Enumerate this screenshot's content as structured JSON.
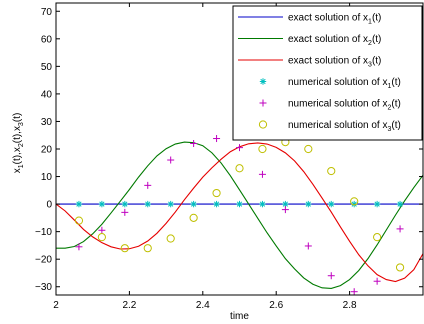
{
  "chart_data": {
    "type": "line",
    "xlabel": "time",
    "ylabel": "x_1(t),x_2(t),x_3(t)",
    "xlim": [
      2,
      3
    ],
    "ylim": [
      -33,
      73
    ],
    "xticks": [
      2,
      2.2,
      2.4,
      2.6,
      2.8
    ],
    "xtick_labels": [
      "2",
      "2.2",
      "2.4",
      "2.6",
      "2.8"
    ],
    "yticks": [
      -30,
      -20,
      -10,
      0,
      10,
      20,
      30,
      40,
      50,
      60,
      70
    ],
    "ytick_labels": [
      "−30",
      "−20",
      "−10",
      "0",
      "10",
      "20",
      "30",
      "40",
      "50",
      "60",
      "70"
    ],
    "grid": false,
    "legend_position": "top-right",
    "series": [
      {
        "kind": "line",
        "color": "#0000c8",
        "legend": {
          "before": "exact solution of x",
          "sub": "1",
          "after": "(t)"
        },
        "x": [
          2.0,
          2.05,
          2.1,
          2.15,
          2.2,
          2.25,
          2.3,
          2.35,
          2.4,
          2.45,
          2.5,
          2.55,
          2.6,
          2.65,
          2.7,
          2.75,
          2.8,
          2.85,
          2.9,
          2.95,
          3.0
        ],
        "y": [
          0,
          0,
          0,
          0,
          0,
          0,
          0,
          0,
          0,
          0,
          0,
          0,
          0,
          0,
          0,
          0,
          0,
          0,
          0,
          0,
          0
        ]
      },
      {
        "kind": "line",
        "color": "#007a00",
        "legend": {
          "before": "exact solution of x",
          "sub": "2",
          "after": "(t)"
        },
        "x": [
          2.0,
          2.025,
          2.05,
          2.075,
          2.1,
          2.125,
          2.15,
          2.175,
          2.2,
          2.225,
          2.25,
          2.275,
          2.3,
          2.325,
          2.35,
          2.375,
          2.4,
          2.425,
          2.45,
          2.475,
          2.5,
          2.525,
          2.55,
          2.575,
          2.6,
          2.625,
          2.65,
          2.675,
          2.7,
          2.725,
          2.75,
          2.775,
          2.8,
          2.825,
          2.85,
          2.875,
          2.9,
          2.925,
          2.95,
          2.975,
          3.0
        ],
        "y": [
          -16.0,
          -16.0,
          -15.4,
          -13.6,
          -10.8,
          -7.3,
          -3.2,
          1.0,
          5.3,
          9.8,
          13.9,
          17.5,
          20.1,
          21.8,
          22.5,
          22.3,
          21.2,
          18.6,
          14.9,
          10.3,
          5.2,
          0.0,
          -5.2,
          -10.4,
          -15.2,
          -19.8,
          -23.5,
          -26.8,
          -29.1,
          -30.4,
          -30.6,
          -29.6,
          -27.4,
          -24.1,
          -19.8,
          -14.8,
          -9.4,
          -4.0,
          1.2,
          6.0,
          10.5
        ]
      },
      {
        "kind": "line",
        "color": "#e60000",
        "legend": {
          "before": "exact solution of x",
          "sub": "3",
          "after": "(t)"
        },
        "x": [
          2.0,
          2.025,
          2.05,
          2.075,
          2.1,
          2.125,
          2.15,
          2.175,
          2.2,
          2.225,
          2.25,
          2.275,
          2.3,
          2.325,
          2.35,
          2.375,
          2.4,
          2.425,
          2.45,
          2.475,
          2.5,
          2.525,
          2.55,
          2.575,
          2.6,
          2.625,
          2.65,
          2.675,
          2.7,
          2.725,
          2.75,
          2.775,
          2.8,
          2.825,
          2.85,
          2.875,
          2.9,
          2.925,
          2.95,
          2.975,
          3.0
        ],
        "y": [
          0.0,
          -2.5,
          -5.8,
          -9.2,
          -11.9,
          -14.0,
          -15.5,
          -16.3,
          -16.2,
          -15.3,
          -13.4,
          -10.6,
          -7.0,
          -2.9,
          1.6,
          5.8,
          9.8,
          13.2,
          16.3,
          19.0,
          20.8,
          21.9,
          22.2,
          21.8,
          20.6,
          18.6,
          15.7,
          11.8,
          7.2,
          2.2,
          -2.9,
          -8.3,
          -13.5,
          -18.4,
          -22.4,
          -25.6,
          -27.4,
          -28.1,
          -26.9,
          -23.8,
          -18.0
        ]
      },
      {
        "kind": "markers",
        "marker": "asterisk",
        "color": "#00bfbf",
        "legend": {
          "before": "numerical solution of x",
          "sub": "1",
          "after": "(t)"
        },
        "x": [
          2.0625,
          2.125,
          2.1875,
          2.25,
          2.3125,
          2.375,
          2.4375,
          2.5,
          2.5625,
          2.625,
          2.6875,
          2.75,
          2.8125,
          2.875,
          2.9375
        ],
        "y": [
          0,
          0,
          0,
          0,
          0,
          0,
          0,
          0,
          0,
          0,
          0,
          0,
          0,
          0,
          0
        ]
      },
      {
        "kind": "markers",
        "marker": "plus",
        "color": "#bf00bf",
        "legend": {
          "before": "numerical solution of x",
          "sub": "2",
          "after": "(t)"
        },
        "x": [
          2.0625,
          2.125,
          2.1875,
          2.25,
          2.3125,
          2.375,
          2.4375,
          2.5,
          2.5625,
          2.625,
          2.6875,
          2.75,
          2.8125,
          2.875,
          2.9375
        ],
        "y": [
          -15.5,
          -9.5,
          -3.0,
          6.8,
          16.0,
          22.0,
          23.8,
          20.5,
          10.8,
          -2.0,
          -15.2,
          -26.0,
          -31.8,
          -28.0,
          -9.0
        ]
      },
      {
        "kind": "markers",
        "marker": "circle",
        "color": "#bfbf00",
        "legend": {
          "before": "numerical solution of x",
          "sub": "3",
          "after": "(t)"
        },
        "x": [
          2.0625,
          2.125,
          2.1875,
          2.25,
          2.3125,
          2.375,
          2.4375,
          2.5,
          2.5625,
          2.625,
          2.6875,
          2.75,
          2.8125,
          2.875,
          2.9375
        ],
        "y": [
          -6.0,
          -12.0,
          -16.0,
          -16.0,
          -12.5,
          -5.0,
          4.0,
          13.0,
          20.0,
          22.5,
          20.0,
          12.0,
          1.0,
          -12.0,
          -23.0
        ]
      }
    ]
  }
}
